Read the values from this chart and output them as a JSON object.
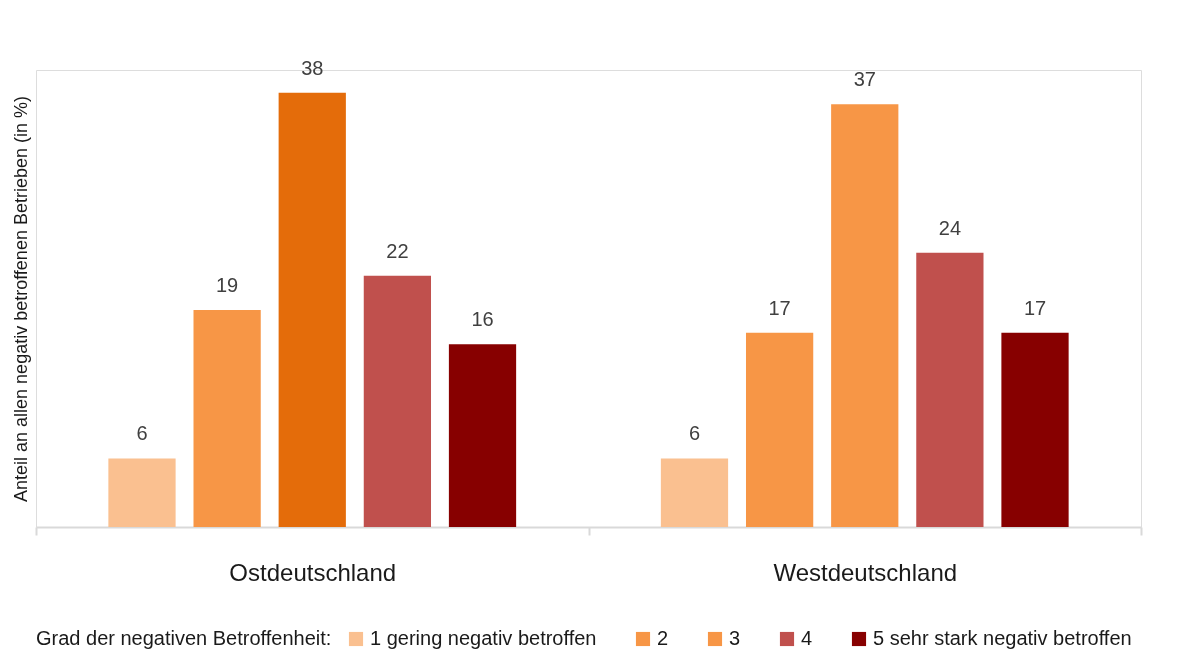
{
  "chart_data": {
    "type": "bar",
    "categories": [
      "Ostdeutschland",
      "Westdeutschland"
    ],
    "ylabel": "Anteil an allen negativ betroffenen Betrieben (in %)",
    "legend_title": "Grad der negativen Betroffenheit:",
    "series": [
      {
        "name": "1 gering negativ betroffen",
        "color": "#fac090",
        "values": [
          6,
          6
        ]
      },
      {
        "name": "2",
        "color": "#f79646",
        "values": [
          19,
          17
        ]
      },
      {
        "name": "3",
        "color": "#f79646",
        "colors": [
          "#e46c0a",
          "#f79646"
        ],
        "values": [
          38,
          37
        ]
      },
      {
        "name": "4",
        "color": "#c0504d",
        "values": [
          22,
          24
        ]
      },
      {
        "name": "5 sehr stark negativ betroffen",
        "color": "#870000",
        "values": [
          16,
          17
        ]
      }
    ],
    "data_labels": true,
    "legend": "bottom",
    "tick_labels": "x"
  }
}
